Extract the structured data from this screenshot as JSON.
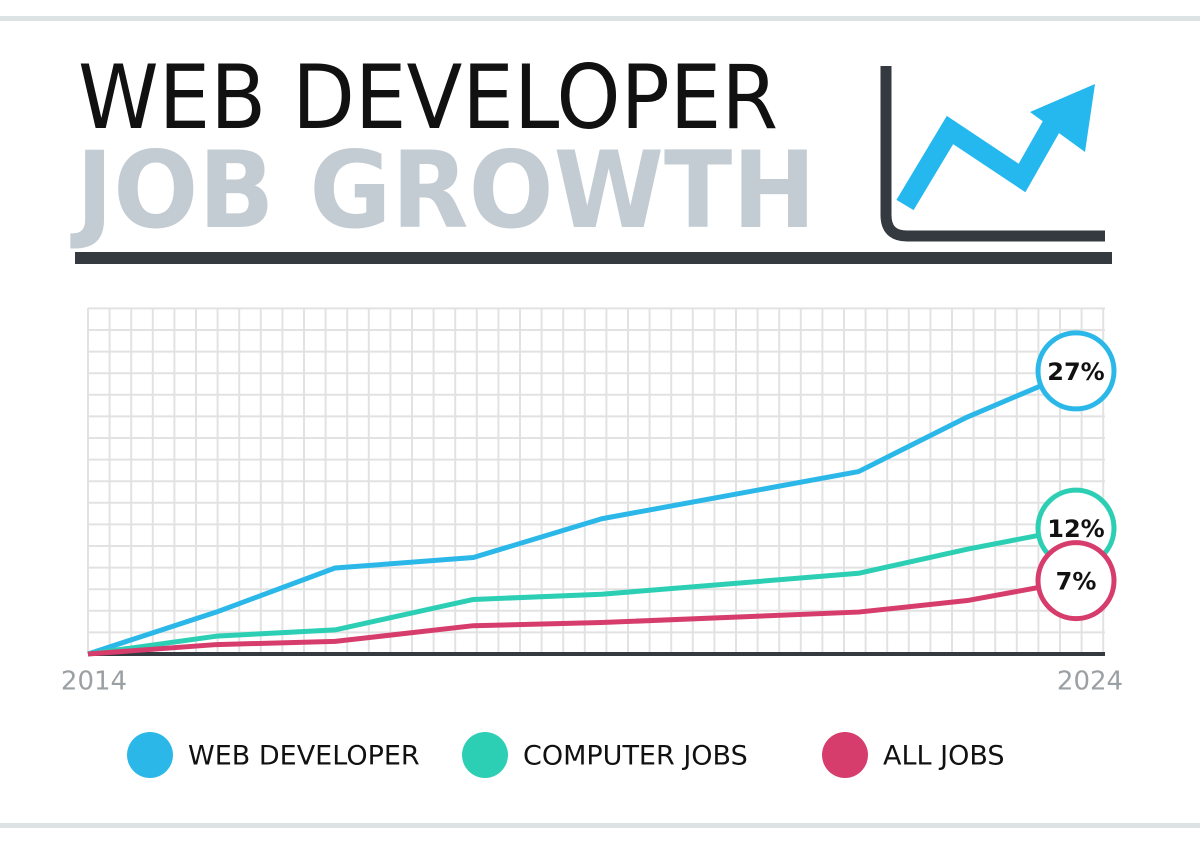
{
  "chart_data": {
    "type": "line",
    "title": "WEB DEVELOPER",
    "subtitle": "JOB GROWTH",
    "xlim": [
      2014,
      2024
    ],
    "xticks": [
      2014,
      2024
    ],
    "ylim": [
      0,
      33
    ],
    "grid": true,
    "series": [
      {
        "name": "WEB DEVELOPER",
        "color": "#2bb8e8",
        "x": [
          2014,
          2015.3,
          2016.5,
          2017.9,
          2019.2,
          2021.8,
          2022.9,
          2024
        ],
        "values": [
          0,
          4.0,
          8.2,
          9.2,
          12.9,
          17.4,
          22.6,
          27
        ],
        "value_labels": [
          null,
          null,
          null,
          null,
          null,
          null,
          null,
          "27%"
        ]
      },
      {
        "name": "COMPUTER JOBS",
        "color": "#2ccfb4",
        "x": [
          2014,
          2015.3,
          2016.5,
          2017.9,
          2019.2,
          2021.8,
          2022.9,
          2024
        ],
        "values": [
          0,
          1.7,
          2.3,
          5.2,
          5.7,
          7.7,
          10.0,
          12
        ],
        "value_labels": [
          null,
          null,
          null,
          null,
          null,
          null,
          null,
          "12%"
        ]
      },
      {
        "name": "ALL JOBS",
        "color": "#d63d6c",
        "x": [
          2014,
          2015.3,
          2016.5,
          2017.9,
          2019.2,
          2021.8,
          2022.9,
          2024
        ],
        "values": [
          0,
          0.9,
          1.2,
          2.7,
          3.0,
          4.0,
          5.1,
          7
        ],
        "value_labels": [
          null,
          null,
          null,
          null,
          null,
          null,
          null,
          "7%"
        ]
      }
    ]
  }
}
